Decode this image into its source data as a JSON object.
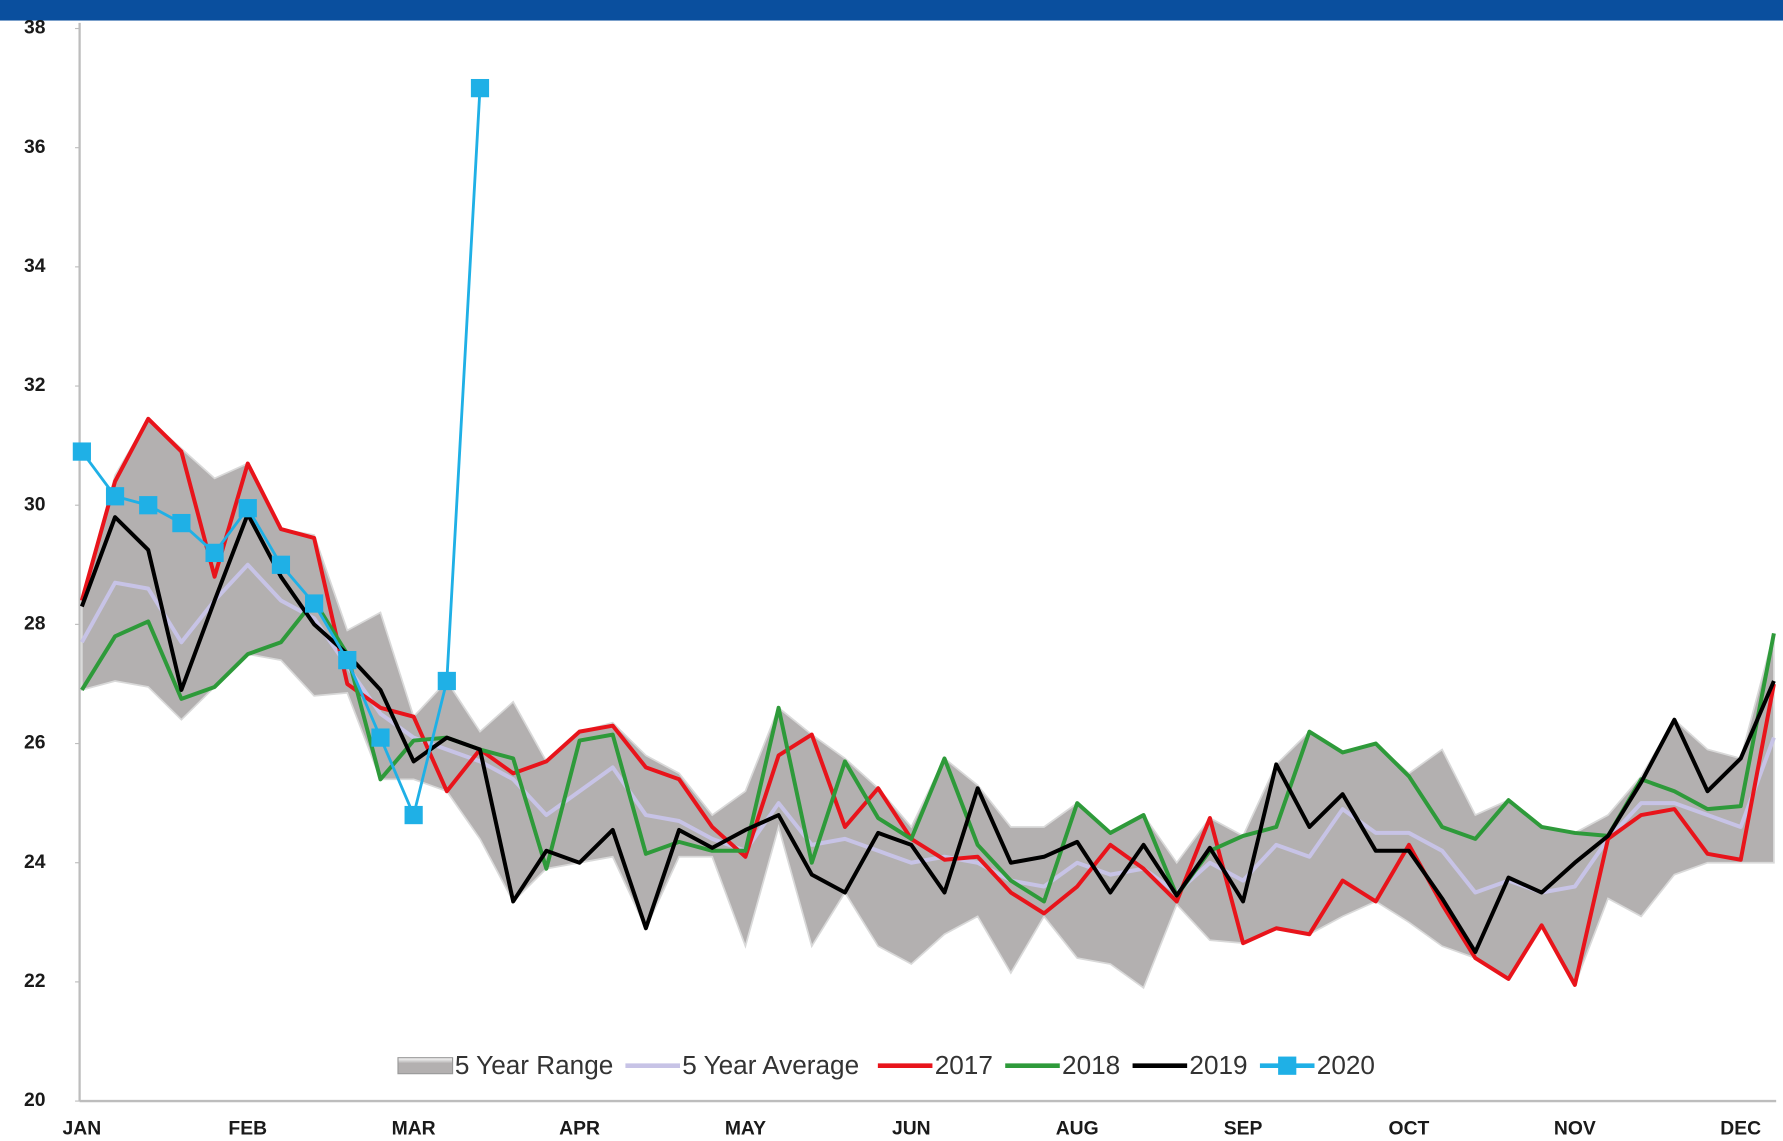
{
  "chart_data": {
    "type": "line",
    "categories": [
      "JAN",
      null,
      null,
      null,
      null,
      "FEB",
      null,
      null,
      null,
      null,
      "MAR",
      null,
      null,
      null,
      null,
      "APR",
      null,
      null,
      null,
      null,
      "MAY",
      null,
      null,
      null,
      null,
      "JUN",
      null,
      null,
      null,
      null,
      "AUG",
      null,
      null,
      null,
      null,
      "SEP",
      null,
      null,
      null,
      null,
      "OCT",
      null,
      null,
      null,
      null,
      "NOV",
      null,
      null,
      null,
      null,
      "DEC",
      null
    ],
    "ylim": [
      20,
      38
    ],
    "yticks": [
      20,
      22,
      24,
      26,
      28,
      30,
      32,
      34,
      36,
      38
    ],
    "legend": "bottom",
    "series": [
      {
        "name": "5 Year Range",
        "color": "#b3b0b0",
        "type": "range",
        "high": [
          28.4,
          30.5,
          31.45,
          30.95,
          30.45,
          30.7,
          29.6,
          29.5,
          27.9,
          28.2,
          26.45,
          27.05,
          26.2,
          26.7,
          25.7,
          26.2,
          26.35,
          25.8,
          25.5,
          24.8,
          25.2,
          26.6,
          26.15,
          25.75,
          25.25,
          24.6,
          25.75,
          25.3,
          24.6,
          24.6,
          25.0,
          24.5,
          24.8,
          24.0,
          24.75,
          24.45,
          25.65,
          26.2,
          25.85,
          26.0,
          25.5,
          25.9,
          24.8,
          25.05,
          24.6,
          24.5,
          24.8,
          25.45,
          26.4,
          25.9,
          25.75,
          27.85
        ],
        "low": [
          26.9,
          27.05,
          26.95,
          26.4,
          26.95,
          27.5,
          27.4,
          26.8,
          26.85,
          25.4,
          25.4,
          25.2,
          24.4,
          23.35,
          23.9,
          24.0,
          24.1,
          22.9,
          24.1,
          24.1,
          22.6,
          24.6,
          22.6,
          23.5,
          22.6,
          22.3,
          22.8,
          23.1,
          22.15,
          23.1,
          22.4,
          22.3,
          21.9,
          23.3,
          22.7,
          22.65,
          22.9,
          22.8,
          23.1,
          23.35,
          23.0,
          22.6,
          22.4,
          22.05,
          22.95,
          21.95,
          23.4,
          23.1,
          23.8,
          24.0,
          24.0,
          24.0
        ]
      },
      {
        "name": "5 Year Average",
        "color": "#c7c3e6",
        "values": [
          27.7,
          28.7,
          28.6,
          27.7,
          28.4,
          29.0,
          28.4,
          28.1,
          27.3,
          26.5,
          26.1,
          25.9,
          25.7,
          25.4,
          24.8,
          25.2,
          25.6,
          24.8,
          24.7,
          24.4,
          24.2,
          25.0,
          24.3,
          24.4,
          24.2,
          24.0,
          24.1,
          24.0,
          23.7,
          23.6,
          24.0,
          23.8,
          23.9,
          23.5,
          24.0,
          23.7,
          24.3,
          24.1,
          24.9,
          24.5,
          24.5,
          24.2,
          23.5,
          23.7,
          23.5,
          23.6,
          24.4,
          25.0,
          25.0,
          24.8,
          24.6,
          26.1
        ]
      },
      {
        "name": "2017",
        "color": "#e8141b",
        "values": [
          28.4,
          30.4,
          31.45,
          30.9,
          28.8,
          30.7,
          29.6,
          29.45,
          27.0,
          26.6,
          26.45,
          25.2,
          25.9,
          25.5,
          25.7,
          26.2,
          26.3,
          25.6,
          25.4,
          24.6,
          24.1,
          25.8,
          26.15,
          24.6,
          25.25,
          24.4,
          24.05,
          24.1,
          23.5,
          23.15,
          23.6,
          24.3,
          23.9,
          23.35,
          24.75,
          22.65,
          22.9,
          22.8,
          23.7,
          23.35,
          24.3,
          23.3,
          22.4,
          22.05,
          22.95,
          21.95,
          24.4,
          24.8,
          24.9,
          24.15,
          24.05,
          27.0
        ]
      },
      {
        "name": "2018",
        "color": "#2e9a3a",
        "values": [
          26.9,
          27.8,
          28.05,
          26.75,
          26.95,
          27.5,
          27.7,
          28.4,
          27.5,
          25.4,
          26.05,
          26.1,
          25.9,
          25.75,
          23.9,
          26.05,
          26.15,
          24.15,
          24.35,
          24.2,
          24.2,
          26.6,
          24.0,
          25.7,
          24.75,
          24.4,
          25.75,
          24.3,
          23.7,
          23.35,
          25.0,
          24.5,
          24.8,
          23.45,
          24.2,
          24.45,
          24.6,
          26.2,
          25.85,
          26.0,
          25.45,
          24.6,
          24.4,
          25.05,
          24.6,
          24.5,
          24.45,
          25.4,
          25.2,
          24.9,
          24.95,
          27.85
        ]
      },
      {
        "name": "2019",
        "color": "#000000",
        "values": [
          28.3,
          29.8,
          29.25,
          26.9,
          28.4,
          29.85,
          28.8,
          28.0,
          27.5,
          26.9,
          25.7,
          26.1,
          25.9,
          23.35,
          24.2,
          24.0,
          24.55,
          22.9,
          24.55,
          24.25,
          24.55,
          24.8,
          23.8,
          23.5,
          24.5,
          24.3,
          23.5,
          25.25,
          24.0,
          24.1,
          24.35,
          23.5,
          24.3,
          23.45,
          24.25,
          23.35,
          25.65,
          24.6,
          25.15,
          24.2,
          24.2,
          23.4,
          22.5,
          23.75,
          23.5,
          24.0,
          24.45,
          25.35,
          26.4,
          25.2,
          25.75,
          27.05
        ]
      },
      {
        "name": "2020",
        "color": "#1fb0e6",
        "marker": "square",
        "values": [
          30.9,
          30.15,
          30.0,
          29.7,
          29.2,
          29.95,
          29.0,
          28.35,
          27.4,
          26.1,
          24.8,
          27.05,
          37.0,
          null,
          null,
          null,
          null,
          null,
          null,
          null,
          null,
          null,
          null,
          null,
          null,
          null,
          null,
          null,
          null,
          null,
          null,
          null,
          null,
          null,
          null,
          null,
          null,
          null,
          null,
          null,
          null,
          null,
          null,
          null,
          null,
          null,
          null,
          null,
          null,
          null,
          null,
          null
        ]
      }
    ]
  }
}
